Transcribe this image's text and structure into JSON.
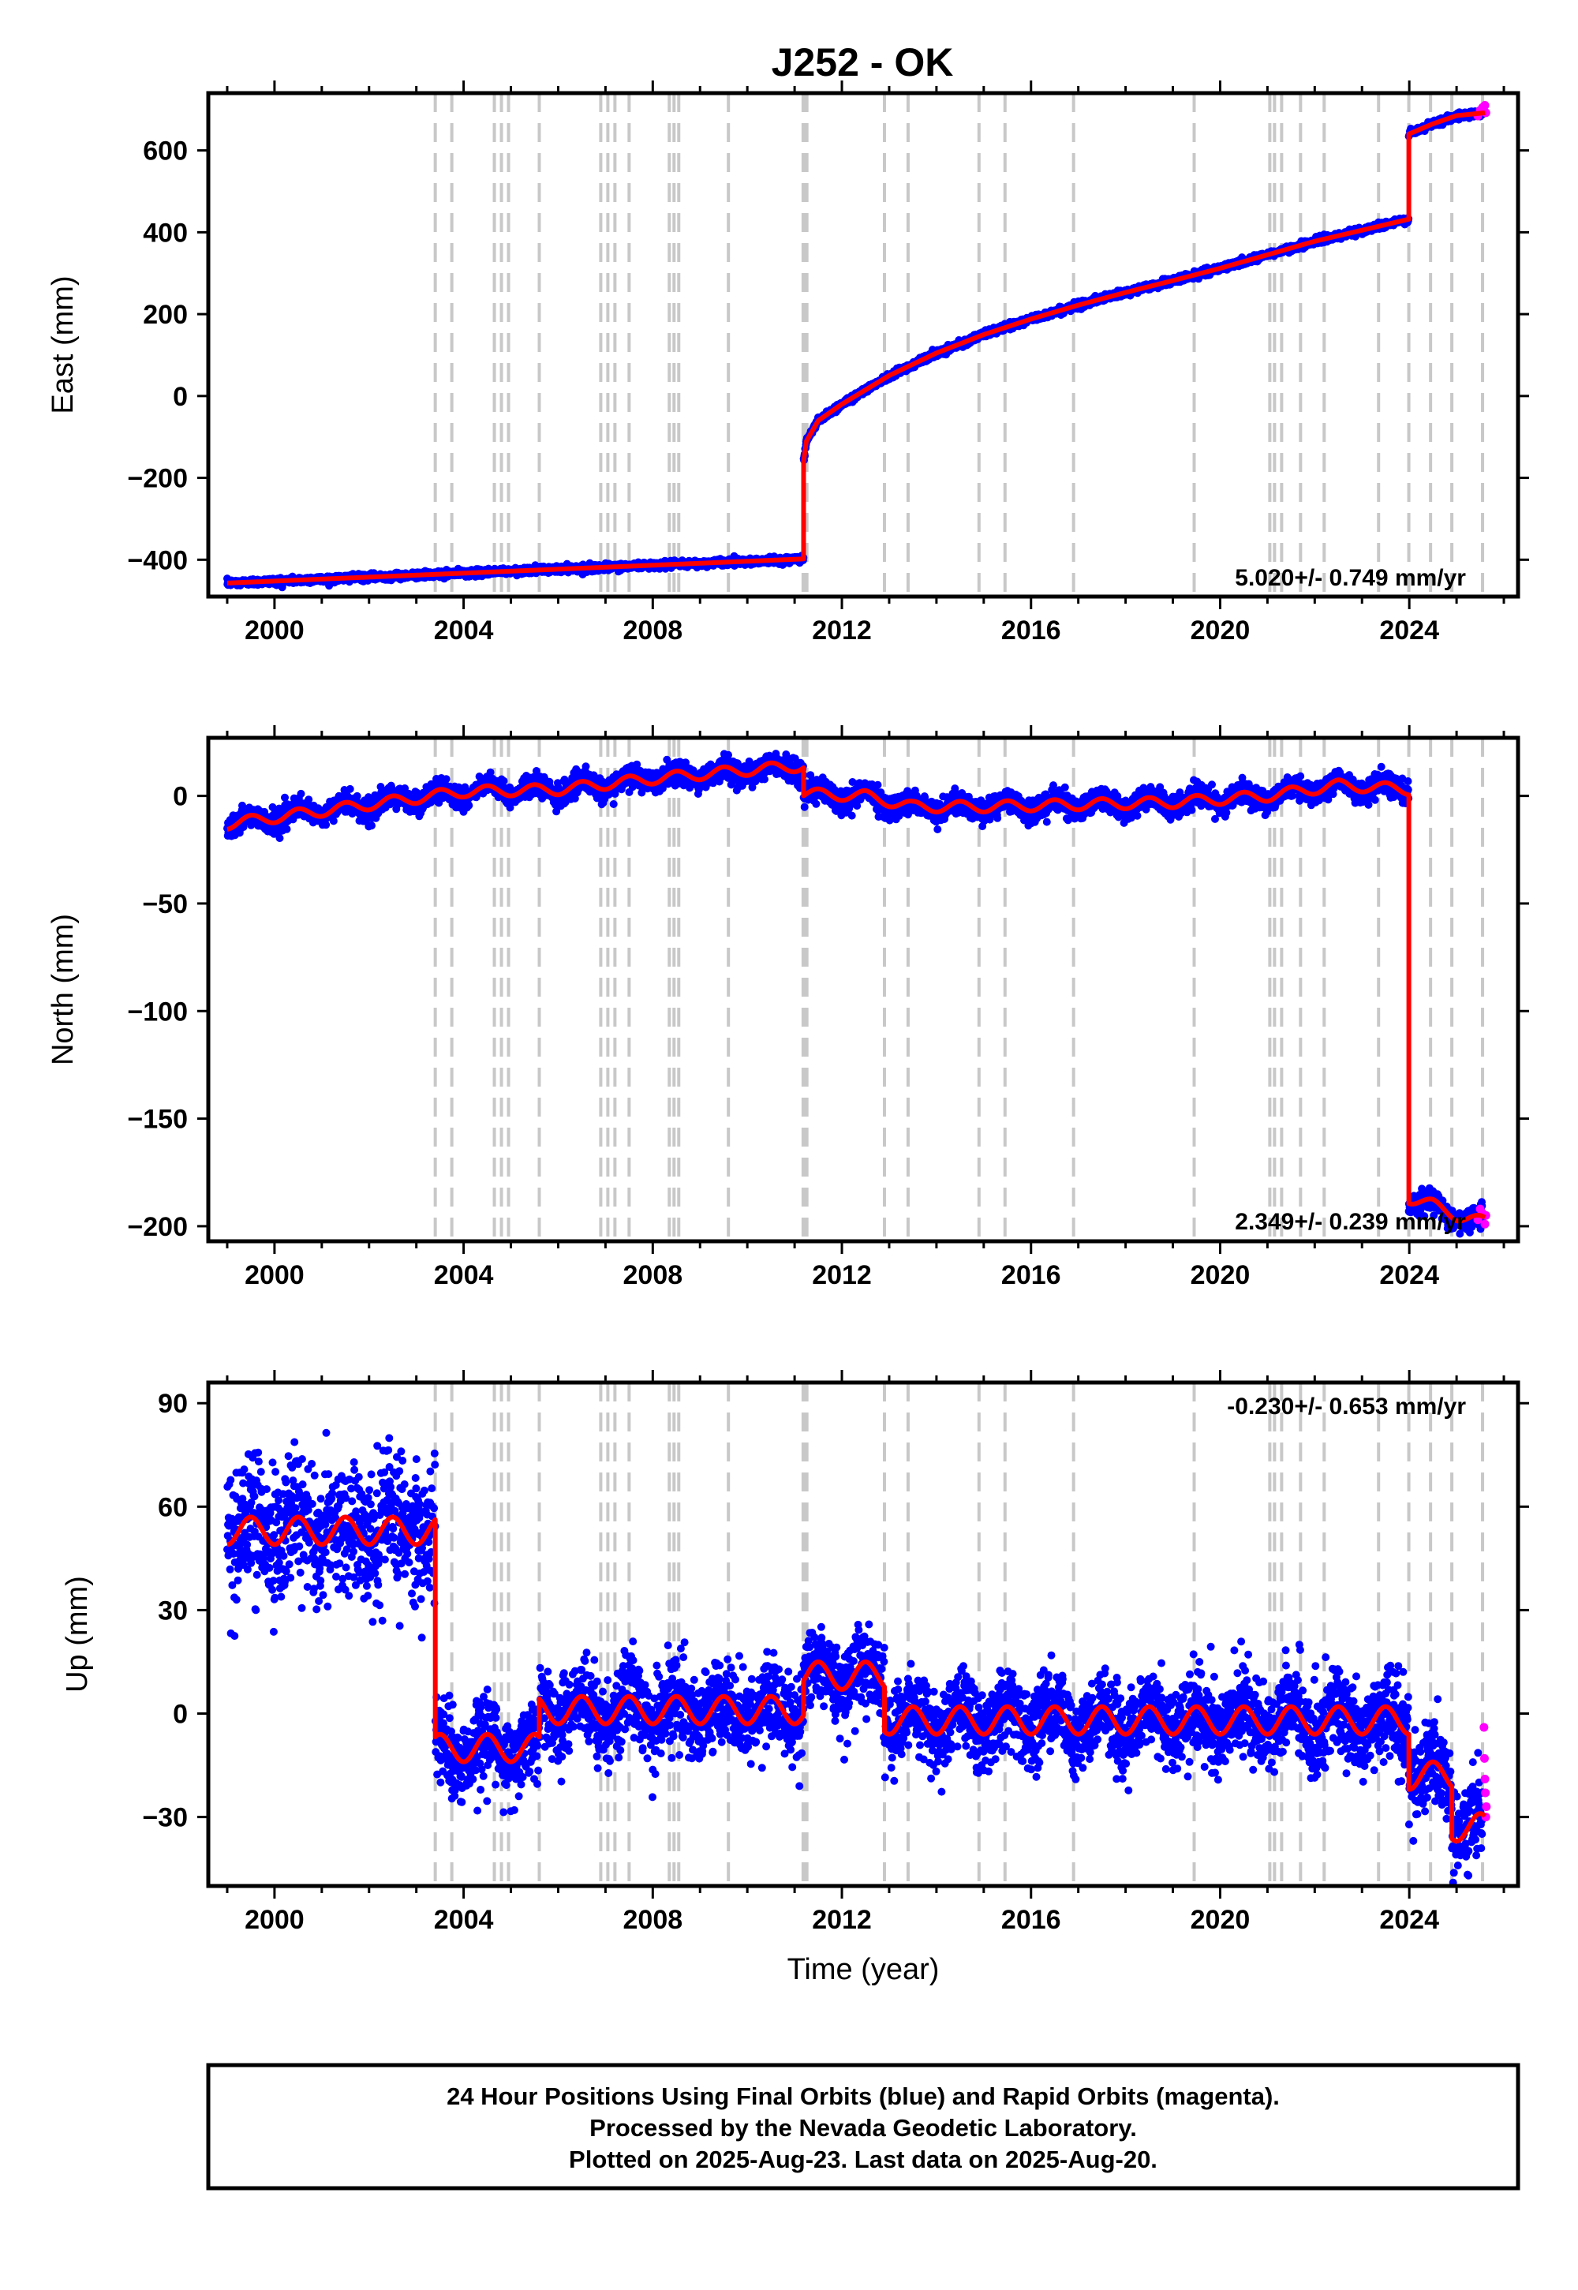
{
  "figure": {
    "title": "J252 - OK",
    "footer": [
      "24 Hour Positions Using Final Orbits (blue) and Rapid Orbits (magenta).",
      "Processed by the Nevada Geodetic Laboratory.",
      "Plotted on 2025-Aug-23. Last data on 2025-Aug-20."
    ]
  },
  "chart_data": [
    {
      "type": "scatter",
      "component": "east",
      "ylabel": "East (mm)",
      "xlabel": "",
      "xlim": [
        1998.6,
        2026.3
      ],
      "ylim": [
        -490,
        740
      ],
      "xticks": [
        "2000",
        "2004",
        "2008",
        "2012",
        "2016",
        "2020",
        "2024"
      ],
      "yticks": [
        600,
        400,
        200,
        0,
        -200,
        -400
      ],
      "yticklabels": [
        "600",
        "400",
        "200",
        "0",
        "−200",
        "−400"
      ],
      "rate_text": "5.020+/- 0.749 mm/yr",
      "trend_segments": [
        {
          "x": [
            1999.0,
            2011.19
          ],
          "y": [
            -457,
            -398
          ]
        },
        {
          "x": [
            2011.19,
            2011.25,
            2011.5,
            2012.0,
            2013.0,
            2014.0,
            2015.0,
            2016.0,
            2017.0,
            2018.0,
            2019.0,
            2020.0,
            2021.0,
            2022.0,
            2023.0,
            2023.99
          ],
          "y": [
            -160,
            -110,
            -60,
            -20,
            50,
            105,
            150,
            188,
            222,
            253,
            282,
            312,
            345,
            378,
            405,
            432
          ]
        },
        {
          "x": [
            2023.99,
            2024.5,
            2025.0,
            2025.6
          ],
          "y": [
            640,
            665,
            685,
            692
          ]
        }
      ],
      "rapid_points": {
        "x": [
          2025.45,
          2025.5,
          2025.55,
          2025.6,
          2025.62
        ],
        "y": [
          684,
          698,
          705,
          710,
          692
        ]
      },
      "noise_mm": 4,
      "seasonal_mm": 0
    },
    {
      "type": "scatter",
      "component": "north",
      "ylabel": "North (mm)",
      "xlabel": "",
      "xlim": [
        1998.6,
        2026.3
      ],
      "ylim": [
        -207,
        27
      ],
      "xticks": [
        "2000",
        "2004",
        "2008",
        "2012",
        "2016",
        "2020",
        "2024"
      ],
      "yticks": [
        0,
        -50,
        -100,
        -150,
        -200
      ],
      "yticklabels": [
        "0",
        "−50",
        "−100",
        "−150",
        "−200"
      ],
      "rate_text": "2.349+/- 0.239 mm/yr",
      "trend_segments": [
        {
          "x": [
            1999.0,
            2000.0,
            2002.0,
            2004.0,
            2006.0,
            2008.0,
            2010.0,
            2011.19
          ],
          "y": [
            -13,
            -10,
            -4,
            2,
            3,
            8,
            12,
            14
          ]
        },
        {
          "x": [
            2011.19,
            2012.5,
            2013.5,
            2015.0,
            2017.0,
            2019.0,
            2021.0,
            2022.5,
            2023.99
          ],
          "y": [
            1,
            0,
            -5,
            -5,
            -4,
            -3,
            0,
            5,
            3
          ]
        },
        {
          "x": [
            2023.99,
            2024.5,
            2025.0,
            2025.6
          ],
          "y": [
            -187,
            -190,
            -195,
            -198
          ]
        }
      ],
      "rapid_points": {
        "x": [
          2025.45,
          2025.5,
          2025.55,
          2025.6,
          2025.62
        ],
        "y": [
          -197,
          -192,
          -194,
          -199,
          -195
        ]
      },
      "noise_mm": 2.5,
      "seasonal_mm": 2.5
    },
    {
      "type": "scatter",
      "component": "up",
      "ylabel": "Up (mm)",
      "xlabel": "Time (year)",
      "xlim": [
        1998.6,
        2026.3
      ],
      "ylim": [
        -50,
        96
      ],
      "xticks": [
        "2000",
        "2004",
        "2008",
        "2012",
        "2016",
        "2020",
        "2024"
      ],
      "yticks": [
        90,
        60,
        30,
        0,
        -30
      ],
      "yticklabels": [
        "90",
        "60",
        "30",
        "0",
        "−30"
      ],
      "rate_text": "-0.230+/- 0.653 mm/yr",
      "trend_segments": [
        {
          "x": [
            1999.0,
            2003.4
          ],
          "y": [
            53,
            53
          ]
        },
        {
          "x": [
            2003.4,
            2005.6
          ],
          "y": [
            -10,
            -10
          ]
        },
        {
          "x": [
            2005.6,
            2011.19
          ],
          "y": [
            1,
            1
          ]
        },
        {
          "x": [
            2011.19,
            2012.9
          ],
          "y": [
            11,
            11
          ]
        },
        {
          "x": [
            2012.9,
            2023.99
          ],
          "y": [
            -2,
            -2
          ]
        },
        {
          "x": [
            2023.99,
            2024.9
          ],
          "y": [
            -18,
            -18
          ]
        },
        {
          "x": [
            2024.9,
            2025.6
          ],
          "y": [
            -33,
            -33
          ]
        }
      ],
      "rapid_points": {
        "x": [
          2025.58,
          2025.59,
          2025.6,
          2025.61,
          2025.62,
          2025.63
        ],
        "y": [
          -4,
          -13,
          -19,
          -23,
          -30,
          -27
        ]
      },
      "noise_mm": 6,
      "seasonal_mm": 4
    }
  ],
  "equipment_changes": [
    2003.4,
    2003.75,
    2004.65,
    2004.8,
    2004.95,
    2005.6,
    2006.9,
    2007.05,
    2007.2,
    2007.5,
    2008.35,
    2008.45,
    2008.55,
    2009.6,
    2011.18,
    2011.22,
    2011.26,
    2012.9,
    2013.4,
    2014.9,
    2015.45,
    2016.9,
    2019.45,
    2021.05,
    2021.15,
    2021.3,
    2021.7,
    2022.2,
    2023.35,
    2023.99,
    2024.45,
    2024.9,
    2025.55
  ],
  "colors": {
    "final_orbits": "#0000ff",
    "rapid_orbits": "#ff00ff",
    "model": "#ff0000",
    "equipment_lines": "#c8c8c8"
  }
}
